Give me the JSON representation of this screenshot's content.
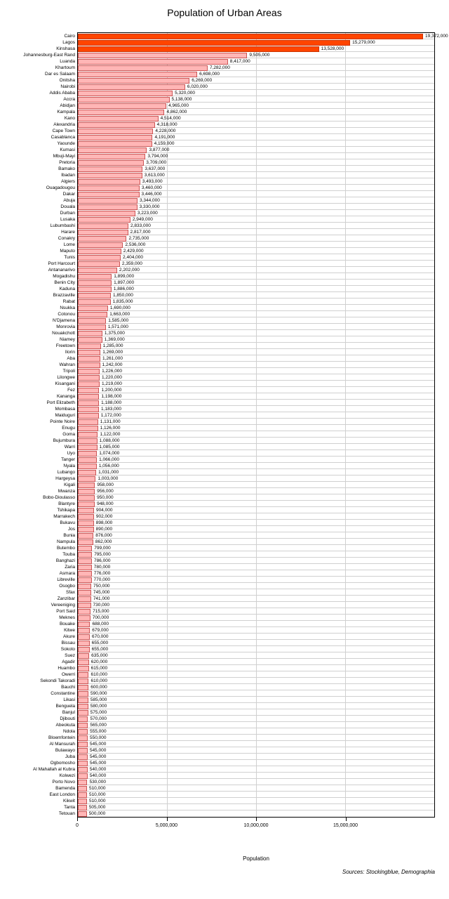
{
  "chart": {
    "type": "bar-horizontal",
    "title": "Population of Urban Areas",
    "xlabel": "Population",
    "sources": "Sources: Stockingblue, Demographia",
    "background_color": "#ffffff",
    "grid_color": "#d0d0d0",
    "border_color": "#000000",
    "title_fontsize": 14,
    "label_fontsize": 7,
    "tick_fontsize": 7,
    "xlim": [
      0,
      20000000
    ],
    "xticks": [
      0,
      5000000,
      10000000,
      15000000
    ],
    "xtick_labels": [
      "0",
      "5,000,000",
      "10,000,000",
      "15,000,000"
    ],
    "bar_fill_default": "#ffb6b6",
    "bar_stroke_default": "#cc5555",
    "bar_fill_highlight": "#ff4500",
    "bar_stroke_highlight": "#cc3300",
    "value_label_color": "#000000",
    "items": [
      {
        "name": "Cairo",
        "value": 19372000,
        "label": "19,372,000",
        "hl": true
      },
      {
        "name": "Lagos",
        "value": 15279000,
        "label": "15,279,000",
        "hl": true
      },
      {
        "name": "Kinshasa",
        "value": 13528000,
        "label": "13,528,000",
        "hl": true
      },
      {
        "name": "Johannesburg-East Rand",
        "value": 9505000,
        "label": "9,505,000"
      },
      {
        "name": "Luanda",
        "value": 8417000,
        "label": "8,417,000"
      },
      {
        "name": "Khartoum",
        "value": 7282000,
        "label": "7,282,000"
      },
      {
        "name": "Dar es Salaam",
        "value": 6698000,
        "label": "6,698,000"
      },
      {
        "name": "Onitsha",
        "value": 6269000,
        "label": "6,269,000"
      },
      {
        "name": "Nairobi",
        "value": 6020000,
        "label": "6,020,000"
      },
      {
        "name": "Addis Ababa",
        "value": 5320000,
        "label": "5,320,000"
      },
      {
        "name": "Accra",
        "value": 5138000,
        "label": "5,138,000"
      },
      {
        "name": "Abidjan",
        "value": 4965000,
        "label": "4,965,000"
      },
      {
        "name": "Kampala",
        "value": 4862000,
        "label": "4,862,000"
      },
      {
        "name": "Kano",
        "value": 4514000,
        "label": "4,514,000"
      },
      {
        "name": "Alexandria",
        "value": 4318000,
        "label": "4,318,000"
      },
      {
        "name": "Cape Town",
        "value": 4228000,
        "label": "4,228,000"
      },
      {
        "name": "Casablanca",
        "value": 4191000,
        "label": "4,191,000"
      },
      {
        "name": "Yaounde",
        "value": 4159000,
        "label": "4,159,000"
      },
      {
        "name": "Kumasi",
        "value": 3877000,
        "label": "3,877,000"
      },
      {
        "name": "Mbuji-Mayi",
        "value": 3794000,
        "label": "3,794,000"
      },
      {
        "name": "Pretoria",
        "value": 3709000,
        "label": "3,709,000"
      },
      {
        "name": "Bamako",
        "value": 3637000,
        "label": "3,637,000"
      },
      {
        "name": "Ibadan",
        "value": 3613000,
        "label": "3,613,000"
      },
      {
        "name": "Algiers",
        "value": 3493000,
        "label": "3,493,000"
      },
      {
        "name": "Ouagadougou",
        "value": 3460000,
        "label": "3,460,000"
      },
      {
        "name": "Dakar",
        "value": 3446000,
        "label": "3,446,000"
      },
      {
        "name": "Abuja",
        "value": 3344000,
        "label": "3,344,000"
      },
      {
        "name": "Douala",
        "value": 3330000,
        "label": "3,330,000"
      },
      {
        "name": "Durban",
        "value": 3223000,
        "label": "3,223,000"
      },
      {
        "name": "Lusaka",
        "value": 2949000,
        "label": "2,949,000"
      },
      {
        "name": "Lubumbashi",
        "value": 2833000,
        "label": "2,833,000"
      },
      {
        "name": "Harare",
        "value": 2817000,
        "label": "2,817,000"
      },
      {
        "name": "Conakry",
        "value": 2735000,
        "label": "2,735,000"
      },
      {
        "name": "Lome",
        "value": 2536000,
        "label": "2,536,000"
      },
      {
        "name": "Maputo",
        "value": 2429000,
        "label": "2,429,000"
      },
      {
        "name": "Tunis",
        "value": 2404000,
        "label": "2,404,000"
      },
      {
        "name": "Port Harcourt",
        "value": 2359000,
        "label": "2,359,000"
      },
      {
        "name": "Antananarivo",
        "value": 2202000,
        "label": "2,202,000"
      },
      {
        "name": "Mogadishu",
        "value": 1899000,
        "label": "1,899,000"
      },
      {
        "name": "Benin City",
        "value": 1897000,
        "label": "1,897,000"
      },
      {
        "name": "Kaduna",
        "value": 1886000,
        "label": "1,886,000"
      },
      {
        "name": "Brazzaville",
        "value": 1850000,
        "label": "1,850,000"
      },
      {
        "name": "Rabat",
        "value": 1835000,
        "label": "1,835,000"
      },
      {
        "name": "Nsukka",
        "value": 1690000,
        "label": "1,690,000"
      },
      {
        "name": "Cotonou",
        "value": 1663000,
        "label": "1,663,000"
      },
      {
        "name": "N'Djamena",
        "value": 1585000,
        "label": "1,585,000"
      },
      {
        "name": "Monrovia",
        "value": 1571000,
        "label": "1,571,000"
      },
      {
        "name": "Nouakchott",
        "value": 1375000,
        "label": "1,375,000"
      },
      {
        "name": "Niamey",
        "value": 1369000,
        "label": "1,369,000"
      },
      {
        "name": "Freetown",
        "value": 1285000,
        "label": "1,285,000"
      },
      {
        "name": "Ilorin",
        "value": 1269000,
        "label": "1,269,000"
      },
      {
        "name": "Aba",
        "value": 1261000,
        "label": "1,261,000"
      },
      {
        "name": "Wahran",
        "value": 1242000,
        "label": "1,242,000"
      },
      {
        "name": "Tripoli",
        "value": 1226000,
        "label": "1,226,000"
      },
      {
        "name": "Lilongwe",
        "value": 1220000,
        "label": "1,220,000"
      },
      {
        "name": "Kisangani",
        "value": 1219000,
        "label": "1,219,000"
      },
      {
        "name": "Fez",
        "value": 1200000,
        "label": "1,200,000"
      },
      {
        "name": "Kananga",
        "value": 1198000,
        "label": "1,198,000"
      },
      {
        "name": "Port Elizabeth",
        "value": 1188000,
        "label": "1,188,000"
      },
      {
        "name": "Mombasa",
        "value": 1183000,
        "label": "1,183,000"
      },
      {
        "name": "Maiduguri",
        "value": 1172000,
        "label": "1,172,000"
      },
      {
        "name": "Pointe Noire",
        "value": 1131000,
        "label": "1,131,000"
      },
      {
        "name": "Enugu",
        "value": 1126000,
        "label": "1,126,000"
      },
      {
        "name": "Goma",
        "value": 1122000,
        "label": "1,122,000"
      },
      {
        "name": "Bujumbura",
        "value": 1088000,
        "label": "1,088,000"
      },
      {
        "name": "Warri",
        "value": 1085000,
        "label": "1,085,000"
      },
      {
        "name": "Uyo",
        "value": 1074000,
        "label": "1,074,000"
      },
      {
        "name": "Tanger",
        "value": 1066000,
        "label": "1,066,000"
      },
      {
        "name": "Nyala",
        "value": 1056000,
        "label": "1,056,000"
      },
      {
        "name": "Lubango",
        "value": 1031000,
        "label": "1,031,000"
      },
      {
        "name": "Hargeysa",
        "value": 1003000,
        "label": "1,003,000"
      },
      {
        "name": "Kigali",
        "value": 958000,
        "label": "958,000"
      },
      {
        "name": "Mwanza",
        "value": 956000,
        "label": "956,000"
      },
      {
        "name": "Bobo-Dioulasso",
        "value": 950000,
        "label": "950,000"
      },
      {
        "name": "Blantyre",
        "value": 948000,
        "label": "948,000"
      },
      {
        "name": "Tshikapa",
        "value": 904000,
        "label": "904,000"
      },
      {
        "name": "Marrakech",
        "value": 902000,
        "label": "902,000"
      },
      {
        "name": "Bukavu",
        "value": 898000,
        "label": "898,000"
      },
      {
        "name": "Jos",
        "value": 890000,
        "label": "890,000"
      },
      {
        "name": "Bunia",
        "value": 876000,
        "label": "876,000"
      },
      {
        "name": "Nampula",
        "value": 862000,
        "label": "862,000"
      },
      {
        "name": "Butembo",
        "value": 799000,
        "label": "799,000"
      },
      {
        "name": "Touba",
        "value": 795000,
        "label": "795,000"
      },
      {
        "name": "Banghazi",
        "value": 786000,
        "label": "786,000"
      },
      {
        "name": "Zaria",
        "value": 780000,
        "label": "780,000"
      },
      {
        "name": "Asmara",
        "value": 776000,
        "label": "776,000"
      },
      {
        "name": "Libreville",
        "value": 770000,
        "label": "770,000"
      },
      {
        "name": "Osogbo",
        "value": 750000,
        "label": "750,000"
      },
      {
        "name": "Sfax",
        "value": 745000,
        "label": "745,000"
      },
      {
        "name": "Zanzibar",
        "value": 741000,
        "label": "741,000"
      },
      {
        "name": "Vereeniging",
        "value": 730000,
        "label": "730,000"
      },
      {
        "name": "Port Said",
        "value": 715000,
        "label": "715,000"
      },
      {
        "name": "Meknes",
        "value": 700000,
        "label": "700,000"
      },
      {
        "name": "Bouake",
        "value": 688000,
        "label": "688,000"
      },
      {
        "name": "Kitwe",
        "value": 679000,
        "label": "679,000"
      },
      {
        "name": "Akure",
        "value": 670000,
        "label": "670,000"
      },
      {
        "name": "Bissau",
        "value": 655000,
        "label": "655,000"
      },
      {
        "name": "Sokoto",
        "value": 655000,
        "label": "655,000"
      },
      {
        "name": "Suez",
        "value": 635000,
        "label": "635,000"
      },
      {
        "name": "Agadir",
        "value": 620000,
        "label": "620,000"
      },
      {
        "name": "Huambo",
        "value": 615000,
        "label": "615,000"
      },
      {
        "name": "Owerri",
        "value": 610000,
        "label": "610,000"
      },
      {
        "name": "Sekondi Takoradi",
        "value": 610000,
        "label": "610,000"
      },
      {
        "name": "Bauchi",
        "value": 600000,
        "label": "600,000"
      },
      {
        "name": "Constantine",
        "value": 590000,
        "label": "590,000"
      },
      {
        "name": "Likasi",
        "value": 585000,
        "label": "585,000"
      },
      {
        "name": "Benguela",
        "value": 580000,
        "label": "580,000"
      },
      {
        "name": "Banjul",
        "value": 575000,
        "label": "575,000"
      },
      {
        "name": "Djibouti",
        "value": 570000,
        "label": "570,000"
      },
      {
        "name": "Abeokuta",
        "value": 565000,
        "label": "565,000"
      },
      {
        "name": "Ndola",
        "value": 555000,
        "label": "555,000"
      },
      {
        "name": "Bloemfontein",
        "value": 550000,
        "label": "550,000"
      },
      {
        "name": "Al Mansurah",
        "value": 545000,
        "label": "545,000"
      },
      {
        "name": "Bulawayo",
        "value": 545000,
        "label": "545,000"
      },
      {
        "name": "Juba",
        "value": 545000,
        "label": "545,000"
      },
      {
        "name": "Ogbomosho",
        "value": 545000,
        "label": "545,000"
      },
      {
        "name": "Al Mahallah al Kubra",
        "value": 540000,
        "label": "540,000"
      },
      {
        "name": "Kolwezi",
        "value": 540000,
        "label": "540,000"
      },
      {
        "name": "Porto Novo",
        "value": 530000,
        "label": "530,000"
      },
      {
        "name": "Bamenda",
        "value": 510000,
        "label": "510,000"
      },
      {
        "name": "East London",
        "value": 510000,
        "label": "510,000"
      },
      {
        "name": "Kikwit",
        "value": 510000,
        "label": "510,000"
      },
      {
        "name": "Tanta",
        "value": 505000,
        "label": "505,000"
      },
      {
        "name": "Tetouan",
        "value": 500000,
        "label": "500,000"
      }
    ]
  }
}
